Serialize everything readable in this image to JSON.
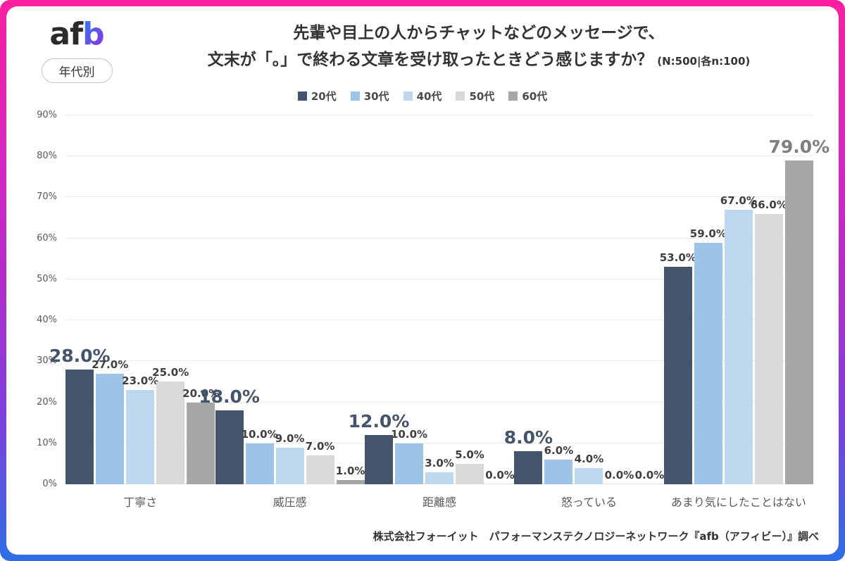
{
  "page": {
    "logo": {
      "dark_part": "af",
      "gradient_part": "b"
    },
    "badge": "年代別",
    "title_line1": "先輩や目上の人からチャットなどのメッセージで、",
    "title_line2": "文末が「。」で終わる文章を受け取ったときどう感じますか？",
    "title_note": "(N:500|各n:100)",
    "footer": "株式会社フォーイット　パフォーマンステクノロジーネットワーク『afb（アフィビー）』調べ"
  },
  "chart_data": {
    "type": "bar",
    "title": "先輩や目上の人からチャットなどのメッセージで、文末が「。」で終わる文章を受け取ったときどう感じますか？",
    "sample_note": "(N:500|各n:100)",
    "categories": [
      "丁寧さ",
      "威圧感",
      "距離感",
      "怒っている",
      "あまり気にしたことはない"
    ],
    "series": [
      {
        "name": "20代",
        "color": "#44546a",
        "values": [
          28,
          18,
          12,
          8,
          53
        ]
      },
      {
        "name": "30代",
        "color": "#9dc3e6",
        "values": [
          27,
          10,
          10,
          6,
          59
        ]
      },
      {
        "name": "40代",
        "color": "#bdd7ee",
        "values": [
          23,
          9,
          3,
          4,
          67
        ]
      },
      {
        "name": "50代",
        "color": "#d9d9d9",
        "values": [
          25,
          7,
          5,
          0,
          66
        ]
      },
      {
        "name": "60代",
        "color": "#a6a6a6",
        "values": [
          20,
          1,
          0,
          0,
          79
        ]
      }
    ],
    "value_labels": [
      [
        "28.0%",
        "18.0%",
        "12.0%",
        "8.0%",
        "53.0%"
      ],
      [
        "27.0%",
        "10.0%",
        "10.0%",
        "6.0%",
        "59.0%"
      ],
      [
        "23.0%",
        "9.0%",
        "3.0%",
        "4.0%",
        "67.0%"
      ],
      [
        "25.0%",
        "7.0%",
        "5.0%",
        "0.0%",
        "66.0%"
      ],
      [
        "20.0%",
        "1.0%",
        "0.0%",
        "0.0%",
        "79.0%"
      ]
    ],
    "emphasis": [
      {
        "category": 0,
        "series": 0,
        "label_color": "#44546a"
      },
      {
        "category": 1,
        "series": 0,
        "label_color": "#44546a"
      },
      {
        "category": 2,
        "series": 0,
        "label_color": "#44546a"
      },
      {
        "category": 3,
        "series": 0,
        "label_color": "#44546a"
      },
      {
        "category": 4,
        "series": 4,
        "label_color": "#7f7f7f"
      }
    ],
    "ylim": [
      0,
      90
    ],
    "ytick_step": 10,
    "ytick_suffix": "%",
    "grid": true,
    "legend_position": "top"
  }
}
